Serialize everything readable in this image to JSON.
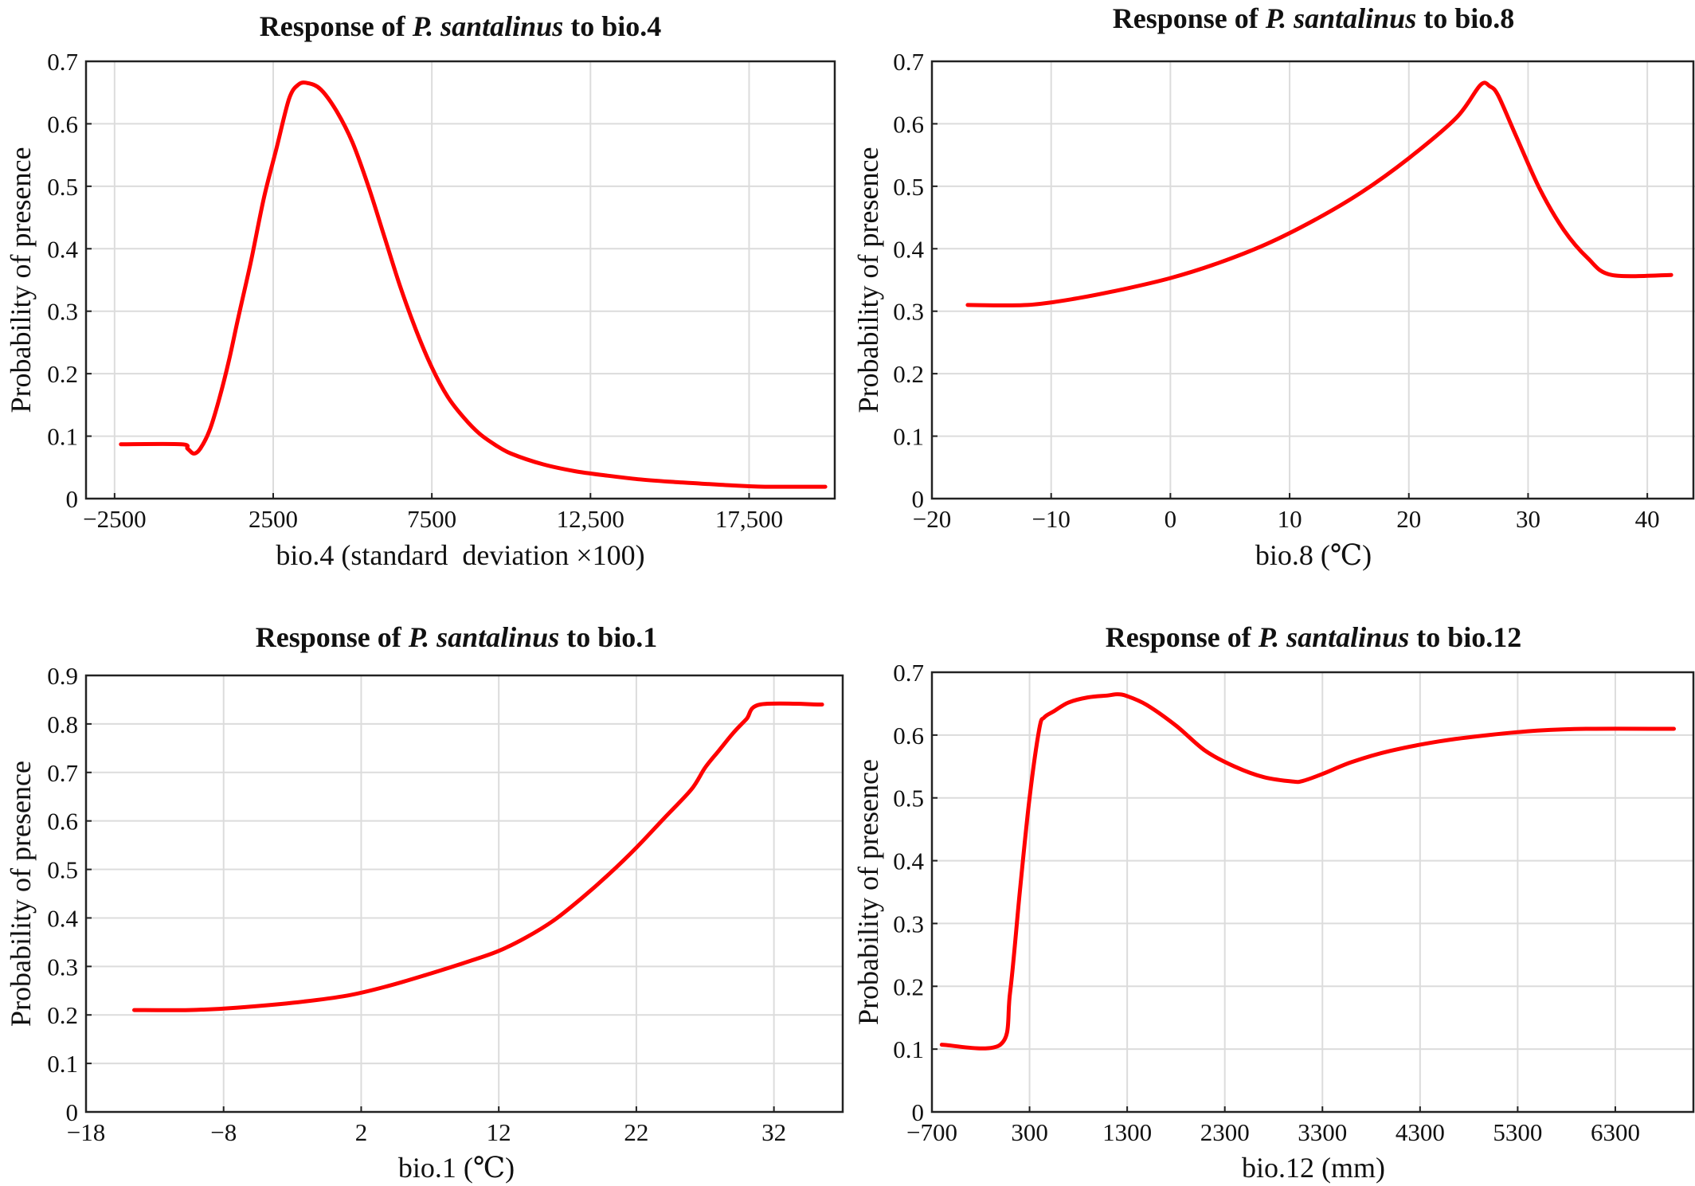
{
  "figure": {
    "colors": {
      "series": "#ff0000",
      "grid": "#dcdcdc",
      "frame": "#222222",
      "text": "#111111"
    }
  },
  "chart_data": [
    {
      "id": "bio4",
      "type": "line",
      "title": {
        "prefix": "Response of ",
        "species": "P. santalinus",
        "suffix": " to bio.4"
      },
      "xlabel": "bio.4 (standard  deviation ×100)",
      "ylabel": "Probability of presence",
      "xlim": [
        -3400,
        20200
      ],
      "ylim": [
        0,
        0.7
      ],
      "xticks": [
        -2500,
        2500,
        7500,
        12500,
        17500
      ],
      "xtick_labels": [
        "−2500",
        "2500",
        "7500",
        "12,500",
        "17,500"
      ],
      "yticks": [
        0,
        0.1,
        0.2,
        0.3,
        0.4,
        0.5,
        0.6,
        0.7
      ],
      "ytick_labels": [
        "0",
        "0.1",
        "0.2",
        "0.3",
        "0.4",
        "0.5",
        "0.6",
        "0.7"
      ],
      "grid": true,
      "series": [
        {
          "x": [
            -2300,
            -400,
            -200,
            0,
            200,
            500,
            800,
            1100,
            1400,
            1800,
            2200,
            2600,
            3000,
            3300,
            3600,
            4000,
            4500,
            5000,
            5500,
            6000,
            6500,
            7000,
            7500,
            8000,
            8500,
            9000,
            9500,
            10000,
            11000,
            12000,
            13000,
            14000,
            15000,
            16000,
            17000,
            18000,
            19000,
            19900
          ],
          "y": [
            0.087,
            0.087,
            0.08,
            0.072,
            0.08,
            0.11,
            0.16,
            0.22,
            0.29,
            0.38,
            0.48,
            0.56,
            0.64,
            0.663,
            0.665,
            0.655,
            0.62,
            0.57,
            0.5,
            0.42,
            0.34,
            0.27,
            0.21,
            0.163,
            0.13,
            0.104,
            0.086,
            0.072,
            0.055,
            0.044,
            0.037,
            0.031,
            0.027,
            0.024,
            0.021,
            0.019,
            0.019,
            0.019
          ]
        }
      ]
    },
    {
      "id": "bio8",
      "type": "line",
      "title": {
        "prefix": "Response of ",
        "species": "P. santalinus",
        "suffix": " to bio.8"
      },
      "xlabel": "bio.8 (℃)",
      "ylabel": "Probability of presence",
      "xlim": [
        -20,
        44
      ],
      "ylim": [
        0,
        0.7
      ],
      "xticks": [
        -20,
        -10,
        0,
        10,
        20,
        30,
        40
      ],
      "xtick_labels": [
        "−20",
        "−10",
        "0",
        "10",
        "20",
        "30",
        "40"
      ],
      "yticks": [
        0,
        0.1,
        0.2,
        0.3,
        0.4,
        0.5,
        0.6,
        0.7
      ],
      "ytick_labels": [
        "0",
        "0.1",
        "0.2",
        "0.3",
        "0.4",
        "0.5",
        "0.6",
        "0.7"
      ],
      "grid": true,
      "series": [
        {
          "x": [
            -17,
            -12,
            -8,
            -4,
            0,
            4,
            8,
            12,
            16,
            20,
            24,
            26,
            26.8,
            27.5,
            29,
            31,
            33,
            35,
            37,
            42
          ],
          "y": [
            0.31,
            0.31,
            0.32,
            0.335,
            0.353,
            0.377,
            0.407,
            0.445,
            0.49,
            0.545,
            0.61,
            0.662,
            0.66,
            0.645,
            0.58,
            0.495,
            0.43,
            0.385,
            0.358,
            0.358
          ]
        }
      ]
    },
    {
      "id": "bio1",
      "type": "line",
      "title": {
        "prefix": "Response of ",
        "species": "P. santalinus",
        "suffix": " to bio.1"
      },
      "xlabel": "bio.1 (℃)",
      "ylabel": "Probability of presence",
      "xlim": [
        -18,
        37
      ],
      "ylim": [
        0,
        0.9
      ],
      "xticks": [
        -18,
        -8,
        2,
        12,
        22,
        32
      ],
      "xtick_labels": [
        "−18",
        "−8",
        "2",
        "12",
        "22",
        "32"
      ],
      "yticks": [
        0,
        0.1,
        0.2,
        0.3,
        0.4,
        0.5,
        0.6,
        0.7,
        0.8,
        0.9
      ],
      "ytick_labels": [
        "0",
        "0.1",
        "0.2",
        "0.3",
        "0.4",
        "0.5",
        "0.6",
        "0.7",
        "0.8",
        "0.9"
      ],
      "grid": true,
      "series": [
        {
          "x": [
            -14.5,
            -10.5,
            -7,
            -3,
            1,
            4,
            7,
            10,
            12,
            14,
            16,
            18,
            20,
            22,
            24,
            26,
            27,
            28,
            29,
            30,
            31,
            35.5
          ],
          "y": [
            0.21,
            0.21,
            0.215,
            0.225,
            0.24,
            0.26,
            0.285,
            0.312,
            0.332,
            0.36,
            0.395,
            0.44,
            0.49,
            0.545,
            0.605,
            0.665,
            0.71,
            0.745,
            0.78,
            0.81,
            0.84,
            0.84
          ]
        }
      ]
    },
    {
      "id": "bio12",
      "type": "line",
      "title": {
        "prefix": "Response of ",
        "species": "P. santalinus",
        "suffix": " to bio.12"
      },
      "xlabel": "bio.12 (mm)",
      "ylabel": "Probability of presence",
      "xlim": [
        -700,
        7100
      ],
      "ylim": [
        0,
        0.7
      ],
      "xticks": [
        -700,
        300,
        1300,
        2300,
        3300,
        4300,
        5300,
        6300
      ],
      "xtick_labels": [
        "−700",
        "300",
        "1300",
        "2300",
        "3300",
        "4300",
        "5300",
        "6300"
      ],
      "yticks": [
        0,
        0.1,
        0.2,
        0.3,
        0.4,
        0.5,
        0.6,
        0.7
      ],
      "ytick_labels": [
        "0",
        "0.1",
        "0.2",
        "0.3",
        "0.4",
        "0.5",
        "0.6",
        "0.7"
      ],
      "grid": true,
      "series": [
        {
          "x": [
            -600,
            0,
            100,
            200,
            300,
            400,
            450,
            550,
            700,
            900,
            1100,
            1200,
            1300,
            1500,
            1800,
            2100,
            2400,
            2700,
            3000,
            3100,
            3300,
            3600,
            4000,
            4500,
            5000,
            5500,
            6000,
            6900
          ],
          "y": [
            0.107,
            0.107,
            0.19,
            0.35,
            0.5,
            0.61,
            0.628,
            0.638,
            0.652,
            0.66,
            0.663,
            0.665,
            0.662,
            0.648,
            0.615,
            0.575,
            0.55,
            0.533,
            0.526,
            0.527,
            0.538,
            0.557,
            0.575,
            0.59,
            0.6,
            0.607,
            0.61,
            0.61
          ]
        }
      ]
    }
  ]
}
